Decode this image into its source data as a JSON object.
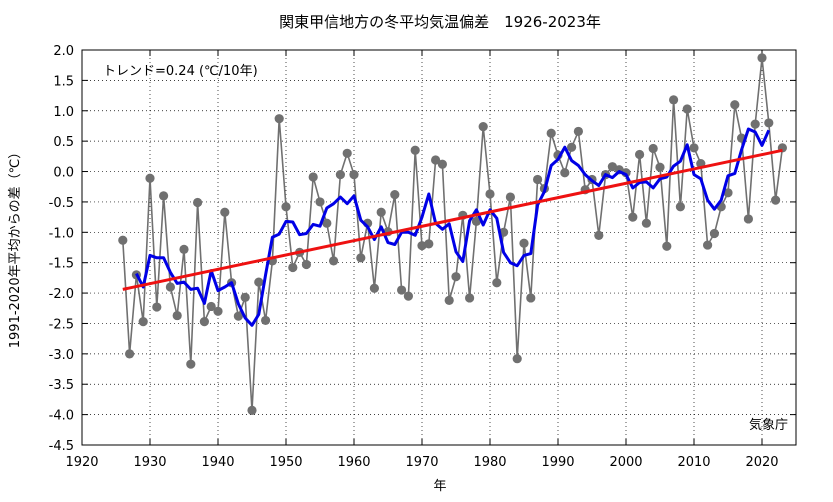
{
  "chart_data": {
    "type": "line",
    "title": "関東甲信地方の冬平均気温偏差　1926-2023年",
    "xlabel": "年",
    "ylabel": "1991-2020年平均からの差（℃）",
    "trend_label": "トレンド=0.24 (℃/10年)",
    "source": "気象庁",
    "xlim": [
      1920,
      2025
    ],
    "ylim": [
      -4.5,
      2.0
    ],
    "x_ticks": [
      "1920",
      "1930",
      "1940",
      "1950",
      "1960",
      "1970",
      "1980",
      "1990",
      "2000",
      "2010",
      "2020"
    ],
    "y_ticks": [
      "2.0",
      "1.5",
      "1.0",
      "0.5",
      "0.0",
      "-0.5",
      "-1.0",
      "-1.5",
      "-2.0",
      "-2.5",
      "-3.0",
      "-3.5",
      "-4.0",
      "-4.5"
    ],
    "grid": true,
    "series": [
      {
        "role": "annual",
        "color": "#707070",
        "x": [
          1926,
          1927,
          1928,
          1929,
          1930,
          1931,
          1932,
          1933,
          1934,
          1935,
          1936,
          1937,
          1938,
          1939,
          1940,
          1941,
          1942,
          1943,
          1944,
          1945,
          1946,
          1947,
          1948,
          1949,
          1950,
          1951,
          1952,
          1953,
          1954,
          1955,
          1956,
          1957,
          1958,
          1959,
          1960,
          1961,
          1962,
          1963,
          1964,
          1965,
          1966,
          1967,
          1968,
          1969,
          1970,
          1971,
          1972,
          1973,
          1974,
          1975,
          1976,
          1977,
          1978,
          1979,
          1980,
          1981,
          1982,
          1983,
          1984,
          1985,
          1986,
          1987,
          1988,
          1989,
          1990,
          1991,
          1992,
          1993,
          1994,
          1995,
          1996,
          1997,
          1998,
          1999,
          2000,
          2001,
          2002,
          2003,
          2004,
          2005,
          2006,
          2007,
          2008,
          2009,
          2010,
          2011,
          2012,
          2013,
          2014,
          2015,
          2016,
          2017,
          2018,
          2019,
          2020,
          2021,
          2022,
          2023
        ],
        "values": [
          -1.13,
          -3.0,
          -1.7,
          -2.47,
          -0.11,
          -2.23,
          -0.4,
          -1.9,
          -2.37,
          -1.28,
          -3.17,
          -0.51,
          -2.47,
          -2.22,
          -2.3,
          -0.67,
          -1.83,
          -2.38,
          -2.07,
          -3.93,
          -1.82,
          -2.45,
          -1.47,
          0.87,
          -0.58,
          -1.58,
          -1.33,
          -1.53,
          -0.09,
          -0.5,
          -0.85,
          -1.47,
          -0.05,
          0.3,
          -0.05,
          -1.42,
          -0.85,
          -1.92,
          -0.67,
          -0.99,
          -0.38,
          -1.95,
          -2.05,
          0.35,
          -1.22,
          -1.19,
          0.19,
          0.12,
          -2.12,
          -1.73,
          -0.72,
          -2.08,
          -0.82,
          0.74,
          -0.37,
          -1.83,
          -1.0,
          -0.42,
          -3.08,
          -1.18,
          -2.08,
          -0.13,
          -0.28,
          0.63,
          0.27,
          -0.02,
          0.4,
          0.66,
          -0.3,
          -0.13,
          -1.05,
          -0.05,
          0.08,
          0.03,
          -0.02,
          -0.75,
          0.28,
          -0.85,
          0.38,
          0.07,
          -1.23,
          1.18,
          -0.58,
          1.03,
          0.39,
          0.13,
          -1.21,
          -1.02,
          -0.58,
          -0.35,
          1.1,
          0.55,
          -0.78,
          0.78,
          1.87,
          0.8,
          -0.47,
          0.39
        ]
      },
      {
        "role": "five-year running mean",
        "color": "#0000e6",
        "x": [
          1928,
          1929,
          1930,
          1931,
          1932,
          1933,
          1934,
          1935,
          1936,
          1937,
          1938,
          1939,
          1940,
          1941,
          1942,
          1943,
          1944,
          1945,
          1946,
          1947,
          1948,
          1949,
          1950,
          1951,
          1952,
          1953,
          1954,
          1955,
          1956,
          1957,
          1958,
          1959,
          1960,
          1961,
          1962,
          1963,
          1964,
          1965,
          1966,
          1967,
          1968,
          1969,
          1970,
          1971,
          1972,
          1973,
          1974,
          1975,
          1976,
          1977,
          1978,
          1979,
          1980,
          1981,
          1982,
          1983,
          1984,
          1985,
          1986,
          1987,
          1988,
          1989,
          1990,
          1991,
          1992,
          1993,
          1994,
          1995,
          1996,
          1997,
          1998,
          1999,
          2000,
          2001,
          2002,
          2003,
          2004,
          2005,
          2006,
          2007,
          2008,
          2009,
          2010,
          2011,
          2012,
          2013,
          2014,
          2015,
          2016,
          2017,
          2018,
          2019,
          2020,
          2021
        ],
        "values": [
          -1.68,
          -1.9,
          -1.38,
          -1.42,
          -1.42,
          -1.66,
          -1.84,
          -1.82,
          -1.94,
          -1.92,
          -2.17,
          -1.63,
          -1.96,
          -1.9,
          -1.83,
          -2.18,
          -2.41,
          -2.53,
          -2.35,
          -1.7,
          -1.08,
          -1.03,
          -0.82,
          -0.83,
          -1.04,
          -1.02,
          -0.87,
          -0.9,
          -0.6,
          -0.53,
          -0.42,
          -0.53,
          -0.4,
          -0.8,
          -0.91,
          -1.12,
          -0.91,
          -1.17,
          -1.2,
          -1.0,
          -1.0,
          -1.05,
          -0.75,
          -0.37,
          -0.85,
          -0.95,
          -0.86,
          -1.32,
          -1.48,
          -0.81,
          -0.63,
          -0.88,
          -0.63,
          -0.77,
          -1.33,
          -1.5,
          -1.55,
          -1.38,
          -1.35,
          -0.55,
          -0.33,
          0.1,
          0.2,
          0.4,
          0.18,
          0.1,
          -0.05,
          -0.15,
          -0.23,
          -0.05,
          -0.1,
          0.0,
          -0.05,
          -0.27,
          -0.18,
          -0.17,
          -0.27,
          -0.12,
          -0.09,
          0.09,
          0.17,
          0.44,
          -0.05,
          -0.12,
          -0.47,
          -0.62,
          -0.47,
          -0.07,
          -0.03,
          0.36,
          0.7,
          0.65,
          0.43,
          0.68
        ]
      },
      {
        "role": "linear trend",
        "color": "#ee1111",
        "x": [
          1926,
          2023
        ],
        "values": [
          -1.94,
          0.35
        ]
      }
    ]
  }
}
